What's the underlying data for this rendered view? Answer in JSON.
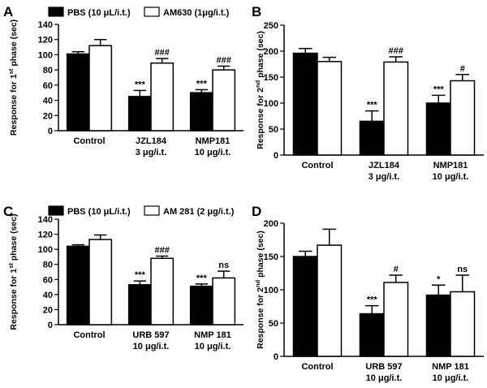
{
  "chart_data": [
    {
      "type": "bar",
      "panel": "A",
      "ylabel": "Response for 1st phase (sec)",
      "ylabel_main": "Response for 1",
      "ylabel_sup": "st",
      "ylabel_tail": " phase (sec)",
      "ylim": [
        0,
        140
      ],
      "yticks": [
        0,
        20,
        40,
        60,
        80,
        100,
        120,
        140
      ],
      "categories": [
        {
          "line1": "Control",
          "line2": ""
        },
        {
          "line1": "JZL184",
          "line2": "3 μg/i.t."
        },
        {
          "line1": "NMP181",
          "line2": "10 μg/i.t."
        }
      ],
      "legend": [
        "PBS (10 μL/i.t.)",
        "AM630 (1μg/i.t.)"
      ],
      "series": [
        {
          "name": "PBS (10 μL/i.t.)",
          "fill": "#000000",
          "values": [
            101,
            45,
            50
          ],
          "errors": [
            3,
            8,
            4
          ],
          "sig": [
            "",
            "***",
            "***"
          ]
        },
        {
          "name": "AM630 (1μg/i.t.)",
          "fill": "#ffffff",
          "values": [
            112,
            89,
            80
          ],
          "errors": [
            8,
            6,
            5
          ],
          "sig": [
            "",
            "###",
            "###"
          ]
        }
      ]
    },
    {
      "type": "bar",
      "panel": "B",
      "ylabel": "Response for 2nd phase (sec)",
      "ylabel_main": "Response for 2",
      "ylabel_sup": "nd",
      "ylabel_tail": " phase (sec)",
      "ylim": [
        0,
        250
      ],
      "yticks": [
        0,
        50,
        100,
        150,
        200,
        250
      ],
      "categories": [
        {
          "line1": "Control",
          "line2": ""
        },
        {
          "line1": "JZL184",
          "line2": "3 μg/i.t."
        },
        {
          "line1": "NMP181",
          "line2": "10 μg/i.t."
        }
      ],
      "legend": [],
      "series": [
        {
          "name": "",
          "fill": "#000000",
          "values": [
            196,
            65,
            100
          ],
          "errors": [
            9,
            20,
            15
          ],
          "sig": [
            "",
            "***",
            "***"
          ]
        },
        {
          "name": "",
          "fill": "#ffffff",
          "values": [
            180,
            179,
            143
          ],
          "errors": [
            8,
            10,
            12
          ],
          "sig": [
            "",
            "###",
            "#"
          ]
        }
      ]
    },
    {
      "type": "bar",
      "panel": "C",
      "ylabel": "Response for 1st phase (sec)",
      "ylabel_main": "Response for 1",
      "ylabel_sup": "st",
      "ylabel_tail": " phase (sec)",
      "ylim": [
        0,
        140
      ],
      "yticks": [
        0,
        20,
        40,
        60,
        80,
        100,
        120,
        140
      ],
      "categories": [
        {
          "line1": "Control",
          "line2": ""
        },
        {
          "line1": "URB 597",
          "line2": "10 μg/i.t."
        },
        {
          "line1": "NMP 181",
          "line2": "10 μg/i.t."
        }
      ],
      "legend": [
        "PBS (10 μL/i.t.)",
        "AM 281 (2 μg/i.t.)"
      ],
      "series": [
        {
          "name": "PBS (10 μL/i.t.)",
          "fill": "#000000",
          "values": [
            104,
            53,
            51
          ],
          "errors": [
            2,
            5,
            3
          ],
          "sig": [
            "",
            "***",
            "***"
          ]
        },
        {
          "name": "AM 281 (2 μg/i.t.)",
          "fill": "#ffffff",
          "values": [
            113,
            88,
            62
          ],
          "errors": [
            6,
            3,
            9
          ],
          "sig": [
            "",
            "###",
            "ns"
          ]
        }
      ]
    },
    {
      "type": "bar",
      "panel": "D",
      "ylabel": "Response for 2nd phase (sec)",
      "ylabel_main": "Response for 2",
      "ylabel_sup": "nd",
      "ylabel_tail": " phase (sec)",
      "ylim": [
        0,
        200
      ],
      "yticks": [
        0,
        50,
        100,
        150,
        200
      ],
      "categories": [
        {
          "line1": "Control",
          "line2": ""
        },
        {
          "line1": "URB 597",
          "line2": "10 μg/i.t."
        },
        {
          "line1": "NMP 181",
          "line2": "10 μg/i.t."
        }
      ],
      "legend": [],
      "series": [
        {
          "name": "",
          "fill": "#000000",
          "values": [
            150,
            64,
            92
          ],
          "errors": [
            8,
            12,
            15
          ],
          "sig": [
            "",
            "***",
            "*"
          ]
        },
        {
          "name": "",
          "fill": "#ffffff",
          "values": [
            167,
            111,
            97
          ],
          "errors": [
            24,
            11,
            25
          ],
          "sig": [
            "",
            "#",
            "ns"
          ]
        }
      ]
    }
  ]
}
